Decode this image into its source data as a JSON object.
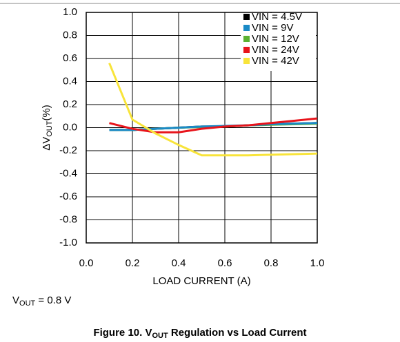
{
  "chart_data": {
    "type": "line",
    "title_parts": [
      "Figure 10. V",
      "OUT",
      " Regulation vs Load Current"
    ],
    "annotation_parts": [
      "V",
      "OUT",
      " = 0.8 V"
    ],
    "ylabel_parts": [
      "ΔV",
      "OUT",
      "(%)"
    ],
    "xlabel": "LOAD CURRENT (A)",
    "x": [
      0.1,
      0.2,
      0.3,
      0.4,
      0.5,
      0.6,
      0.7,
      0.8,
      0.9,
      1.0
    ],
    "series": [
      {
        "name": "VIN = 4.5V",
        "color": "#000000",
        "values": [
          -0.02,
          -0.02,
          -0.01,
          0,
          0.01,
          0.01,
          0.02,
          0.03,
          0.035,
          0.04
        ]
      },
      {
        "name": "VIN = 9V",
        "color": "#1a8ac6",
        "values": [
          -0.02,
          -0.02,
          -0.01,
          0,
          0.01,
          0.015,
          0.02,
          0.03,
          0.035,
          0.04
        ]
      },
      {
        "name": "VIN = 12V",
        "color": "#5bb131",
        "values": [
          -0.02,
          -0.02,
          -0.01,
          0,
          0.005,
          0.01,
          0.02,
          0.025,
          0.03,
          0.035
        ]
      },
      {
        "name": "VIN = 24V",
        "color": "#e8141b",
        "values": [
          0.04,
          -0.01,
          -0.04,
          -0.04,
          -0.01,
          0.01,
          0.02,
          0.04,
          0.06,
          0.08
        ]
      },
      {
        "name": "VIN = 42V",
        "color": "#f8e43a",
        "values": [
          0.56,
          0.07,
          -0.05,
          -0.15,
          -0.24,
          -0.24,
          -0.24,
          -0.235,
          -0.23,
          -0.225
        ]
      }
    ],
    "xlim": [
      0,
      1
    ],
    "xticks": [
      {
        "value": 0,
        "label": "0.0"
      },
      0.2,
      0.4,
      0.6,
      0.8,
      {
        "value": 1,
        "label": "1.0"
      }
    ],
    "ylim": [
      -1,
      1
    ],
    "yticks": [
      {
        "value": -1,
        "label": "-1.0"
      },
      -0.8,
      -0.6,
      -0.4,
      -0.2,
      {
        "value": 0,
        "label": "0.0"
      },
      0.2,
      0.4,
      0.6,
      0.8,
      {
        "value": 1,
        "label": "1.0"
      }
    ],
    "grid": true,
    "legend": "upper right"
  }
}
